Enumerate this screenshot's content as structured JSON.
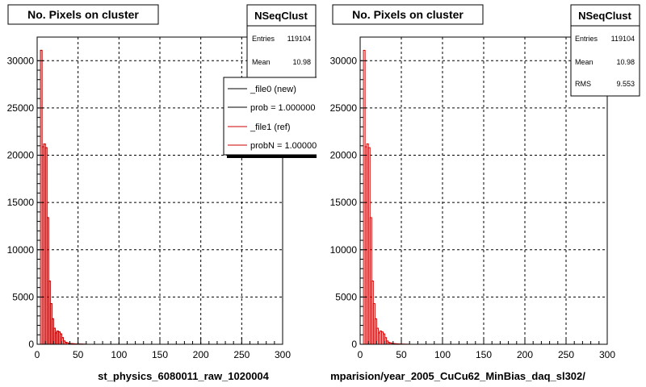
{
  "left_panel": {
    "title": "No. Pixels on cluster",
    "xlabel": "st_physics_6080011_raw_1020004",
    "footer_text": "",
    "stats": {
      "name": "NSeqClust",
      "rows": [
        {
          "label": "Entries",
          "value": "119104"
        },
        {
          "label": "Mean",
          "value": "10.98"
        }
      ]
    },
    "legend": {
      "entries": [
        {
          "label": "_file0 (new)",
          "color": "#000000"
        },
        {
          "label": "prob = 1.000000",
          "color": "#000000"
        },
        {
          "label": "_file1 (ref)",
          "color": "#cc0000"
        },
        {
          "label": "probN = 1.000000",
          "color": "#cc0000"
        }
      ]
    }
  },
  "right_panel": {
    "title": "No. Pixels on cluster",
    "xlabel": "mparision/year_2005_CuCu62_MinBias_daq_sl302/",
    "stats": {
      "name": "NSeqClust",
      "rows": [
        {
          "label": "Entries",
          "value": "119104"
        },
        {
          "label": "Mean",
          "value": "10.98"
        },
        {
          "label": "RMS",
          "value": "9.553"
        }
      ]
    }
  },
  "chart_data": [
    {
      "type": "bar",
      "panel": "left",
      "xlim": [
        0,
        300
      ],
      "ylim": [
        0,
        32500
      ],
      "x_ticks": [
        "0",
        "50",
        "100",
        "150",
        "200",
        "250",
        "300"
      ],
      "y_ticks": [
        "0",
        "5000",
        "10000",
        "15000",
        "20000",
        "25000",
        "30000"
      ],
      "grid": true,
      "bin_width": 2,
      "series": [
        {
          "name": "_file0 (new)",
          "color": "#000000",
          "values": [
            0,
            0,
            31100,
            20900,
            21200,
            20800,
            13400,
            6700,
            4300,
            2700,
            1700,
            1200,
            1400,
            1300,
            1100,
            700,
            350,
            200,
            150,
            100,
            80,
            60,
            50,
            40,
            30,
            25,
            20,
            15,
            10,
            8
          ]
        },
        {
          "name": "_file1 (ref)",
          "color": "#cc0000",
          "values": [
            0,
            0,
            31100,
            20900,
            21200,
            20800,
            13400,
            6700,
            4300,
            2700,
            1700,
            1200,
            1400,
            1300,
            1100,
            700,
            350,
            200,
            150,
            100,
            80,
            60,
            50,
            40,
            30,
            25,
            20,
            15,
            10,
            8
          ]
        }
      ]
    },
    {
      "type": "bar",
      "panel": "right",
      "xlim": [
        0,
        300
      ],
      "ylim": [
        0,
        32500
      ],
      "x_ticks": [
        "0",
        "50",
        "100",
        "150",
        "200",
        "250",
        "300"
      ],
      "y_ticks": [
        "0",
        "5000",
        "10000",
        "15000",
        "20000",
        "25000",
        "30000"
      ],
      "grid": true,
      "bin_width": 2,
      "series": [
        {
          "name": "",
          "color": "#cc0000",
          "values": [
            0,
            0,
            31100,
            20900,
            21200,
            20800,
            13400,
            6700,
            4300,
            2700,
            1700,
            1200,
            1400,
            1300,
            1100,
            700,
            350,
            200,
            150,
            100,
            80,
            60,
            50,
            40,
            30,
            25,
            20,
            15,
            10,
            8
          ]
        }
      ]
    }
  ]
}
